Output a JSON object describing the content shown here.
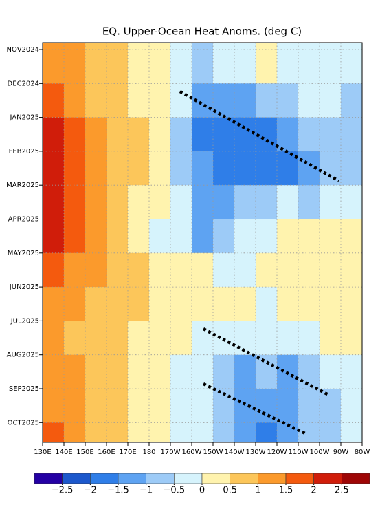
{
  "chart_data": {
    "type": "heatmap",
    "title": "EQ. Upper-Ocean Heat Anoms. (deg C)",
    "categories": [
      "NOV2024",
      "DEC2024",
      "JAN2025",
      "FEB2025",
      "MAR2025",
      "APR2025",
      "MAY2025",
      "JUN2025",
      "JUL2025",
      "AUG2025",
      "SEP2025",
      "OCT2025"
    ],
    "x_labels": [
      "130E",
      "140E",
      "150E",
      "160E",
      "170E",
      "180",
      "170W",
      "160W",
      "150W",
      "140W",
      "130W",
      "120W",
      "110W",
      "100W",
      "90W",
      "80W"
    ],
    "values": [
      [
        1.2,
        1.0,
        0.7,
        0.6,
        0.4,
        0.2,
        -0.3,
        -0.6,
        -0.4,
        -0.2,
        0.1,
        -0.2,
        -0.3,
        -0.2,
        -0.3
      ],
      [
        1.6,
        1.3,
        0.9,
        0.6,
        0.4,
        0.1,
        -0.5,
        -1.2,
        -1.3,
        -1.2,
        -0.9,
        -0.6,
        -0.5,
        -0.4,
        -0.6
      ],
      [
        2.1,
        1.6,
        1.1,
        0.8,
        0.5,
        0.1,
        -0.7,
        -1.6,
        -1.8,
        -2.0,
        -1.7,
        -1.2,
        -0.8,
        -0.6,
        -0.8
      ],
      [
        2.1,
        1.7,
        1.2,
        0.8,
        0.5,
        0.1,
        -0.6,
        -1.5,
        -1.6,
        -1.6,
        -1.6,
        -1.7,
        -1.4,
        -0.8,
        -0.6
      ],
      [
        2.2,
        1.7,
        1.2,
        0.8,
        0.4,
        0.0,
        -0.4,
        -1.2,
        -1.3,
        -0.9,
        -0.6,
        -0.5,
        -0.6,
        -0.5,
        -0.4
      ],
      [
        2.1,
        1.6,
        1.1,
        0.7,
        0.3,
        -0.1,
        -0.3,
        -1.1,
        -0.6,
        -0.3,
        -0.2,
        0.2,
        0.3,
        0.2,
        0.1
      ],
      [
        1.7,
        1.4,
        1.1,
        0.8,
        0.5,
        0.2,
        0.1,
        0.0,
        -0.1,
        -0.2,
        0.1,
        0.2,
        0.3,
        0.1,
        0.2
      ],
      [
        1.2,
        1.0,
        0.8,
        0.8,
        0.6,
        0.3,
        0.2,
        0.2,
        0.3,
        0.1,
        -0.1,
        0.0,
        0.2,
        0.1,
        0.3
      ],
      [
        1.1,
        0.9,
        0.7,
        0.6,
        0.4,
        0.3,
        0.1,
        -0.1,
        -0.2,
        -0.1,
        -0.2,
        -0.3,
        -0.1,
        0.2,
        0.1
      ],
      [
        1.3,
        1.0,
        0.7,
        0.6,
        0.4,
        0.2,
        -0.1,
        -0.4,
        -0.8,
        -1.1,
        -1.0,
        -1.1,
        -0.7,
        -0.4,
        -0.2
      ],
      [
        1.4,
        1.0,
        0.7,
        0.5,
        0.3,
        0.1,
        -0.2,
        -0.5,
        -0.9,
        -1.2,
        -1.3,
        -1.2,
        -1.0,
        -0.6,
        -0.3
      ],
      [
        1.6,
        1.2,
        0.8,
        0.6,
        0.4,
        0.2,
        -0.2,
        -0.5,
        -1.0,
        -1.4,
        -1.6,
        -1.4,
        -1.0,
        -0.6,
        -0.3
      ]
    ],
    "levels": [
      {
        "value": -2.5,
        "label": "−2.5"
      },
      {
        "value": -2,
        "label": "−2"
      },
      {
        "value": -1.5,
        "label": "−1.5"
      },
      {
        "value": -1,
        "label": "−1"
      },
      {
        "value": -0.5,
        "label": "−0.5"
      },
      0,
      0.5,
      1,
      1.5,
      2,
      2.5
    ],
    "colors": [
      "#2400a4",
      "#1c58cc",
      "#2f7ee8",
      "#5ea3f2",
      "#9dcbf7",
      "#d6f3fc",
      "#fff3ae",
      "#fcc65a",
      "#fb9a2c",
      "#f45a0e",
      "#d01d0a",
      "#9e0606",
      "#bf8d86"
    ],
    "grid": true
  }
}
